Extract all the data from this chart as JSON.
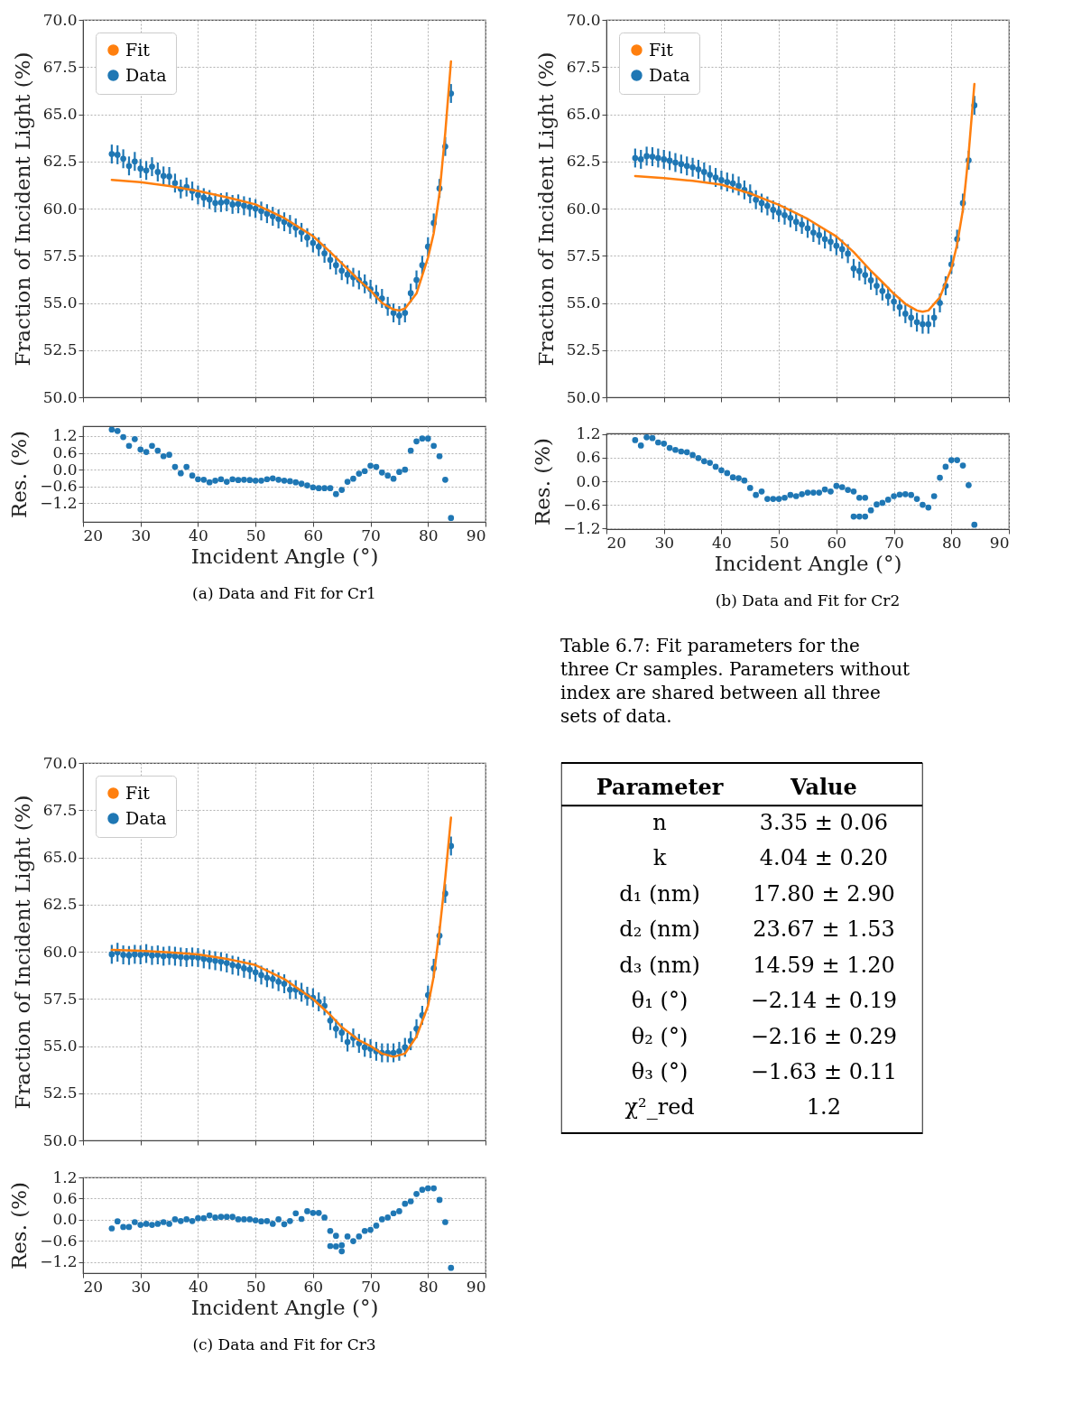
{
  "chart_data": [
    {
      "type": "scatter",
      "ylabel": "Fraction of Incident Light (%)",
      "xlim": [
        20,
        90
      ],
      "xticks": [
        20,
        30,
        40,
        50,
        60,
        70,
        80,
        90
      ],
      "ylim": [
        50,
        70
      ],
      "yticks": [
        {
          "value": 50,
          "label": "50.0"
        },
        52.5,
        {
          "value": 55,
          "label": "55.0"
        },
        57.5,
        {
          "value": 60,
          "label": "60.0"
        },
        62.5,
        {
          "value": 65,
          "label": "65.0"
        },
        67.5,
        {
          "value": 70,
          "label": "70.0"
        }
      ],
      "tick_labels": "y",
      "grid": true,
      "legend": "top left",
      "series": [
        {
          "name": "Fit",
          "type": "line",
          "color": "#ff7f0e",
          "x": [
            25,
            30,
            35,
            40,
            45,
            50,
            55,
            60,
            63,
            66,
            68,
            70,
            72,
            74,
            75,
            76,
            78,
            80,
            81,
            82,
            83,
            84
          ],
          "values": [
            61.52,
            61.4,
            61.2,
            60.93,
            60.6,
            60.22,
            59.5,
            58.54,
            57.7,
            56.8,
            56.2,
            55.66,
            55.0,
            54.65,
            54.6,
            54.7,
            55.5,
            57.4,
            58.7,
            60.8,
            64.0,
            67.8
          ]
        },
        {
          "name": "Data",
          "type": "scatter",
          "color": "#1f77b4",
          "x": [
            25,
            26,
            27,
            28,
            29,
            30,
            31,
            32,
            33,
            34,
            35,
            36,
            37,
            38,
            39,
            40,
            41,
            42,
            43,
            44,
            45,
            46,
            47,
            48,
            49,
            50,
            51,
            52,
            53,
            54,
            55,
            56,
            57,
            58,
            59,
            60,
            61,
            62,
            63,
            64,
            65,
            66,
            67,
            68,
            69,
            70,
            71,
            72,
            73,
            74,
            75,
            76,
            77,
            78,
            79,
            80,
            81,
            82,
            83,
            84
          ],
          "values": [
            62.89,
            62.85,
            62.64,
            62.26,
            62.5,
            62.12,
            62.02,
            62.22,
            61.94,
            61.73,
            61.7,
            61.35,
            61.04,
            61.14,
            60.93,
            60.72,
            60.58,
            60.48,
            60.3,
            60.32,
            60.36,
            60.22,
            60.25,
            60.15,
            60.08,
            60.0,
            59.87,
            59.73,
            59.59,
            59.45,
            59.3,
            59.16,
            58.98,
            58.74,
            58.46,
            58.18,
            57.98,
            57.63,
            57.28,
            57.0,
            56.71,
            56.5,
            56.36,
            56.22,
            56.01,
            55.73,
            55.45,
            55.24,
            54.82,
            54.47,
            54.33,
            54.47,
            55.52,
            56.22,
            57.0,
            57.98,
            59.24,
            61.07,
            63.29,
            66.1
          ],
          "errors": [
            0.5,
            0.5,
            0.5,
            0.5,
            0.5,
            0.5,
            0.5,
            0.5,
            0.5,
            0.5,
            0.5,
            0.5,
            0.5,
            0.5,
            0.5,
            0.5,
            0.5,
            0.5,
            0.5,
            0.5,
            0.5,
            0.5,
            0.5,
            0.5,
            0.5,
            0.5,
            0.5,
            0.5,
            0.5,
            0.5,
            0.5,
            0.5,
            0.5,
            0.5,
            0.5,
            0.5,
            0.5,
            0.5,
            0.5,
            0.5,
            0.5,
            0.5,
            0.5,
            0.5,
            0.5,
            0.5,
            0.5,
            0.5,
            0.5,
            0.5,
            0.5,
            0.5,
            0.5,
            0.5,
            0.5,
            0.5,
            0.5,
            0.5,
            0.5,
            0.5
          ]
        }
      ]
    },
    {
      "type": "scatter",
      "xlabel": "Incident Angle (°)",
      "ylabel": "Res. (%)",
      "xlim": [
        20,
        90
      ],
      "xticks": [
        20,
        30,
        40,
        50,
        60,
        70,
        80,
        90
      ],
      "ylim": [
        -1.86,
        1.55
      ],
      "yticks": [
        {
          "value": -1.2,
          "label": "−1.2"
        },
        {
          "value": -0.6,
          "label": "−0.6"
        },
        {
          "value": 0,
          "label": "0.0"
        },
        0.6,
        1.2
      ],
      "grid": true,
      "annotations": [
        "(a) Data and Fit for Cr1"
      ],
      "series": [
        {
          "color": "#1f77b4",
          "x": [
            25,
            26,
            27,
            28,
            29,
            30,
            31,
            32,
            33,
            34,
            35,
            36,
            37,
            38,
            39,
            40,
            41,
            42,
            43,
            44,
            45,
            46,
            47,
            48,
            49,
            50,
            51,
            52,
            53,
            54,
            55,
            56,
            57,
            58,
            59,
            60,
            61,
            62,
            63,
            64,
            65,
            66,
            67,
            68,
            69,
            70,
            71,
            72,
            73,
            74,
            75,
            76,
            77,
            78,
            79,
            80,
            81,
            82,
            83,
            84
          ],
          "values": [
            1.43,
            1.38,
            1.16,
            0.85,
            1.09,
            0.72,
            0.63,
            0.85,
            0.68,
            0.48,
            0.53,
            0.1,
            -0.13,
            0.1,
            -0.21,
            -0.34,
            -0.36,
            -0.45,
            -0.39,
            -0.34,
            -0.43,
            -0.34,
            -0.37,
            -0.36,
            -0.37,
            -0.39,
            -0.39,
            -0.34,
            -0.31,
            -0.36,
            -0.39,
            -0.41,
            -0.45,
            -0.5,
            -0.56,
            -0.63,
            -0.66,
            -0.66,
            -0.66,
            -0.87,
            -0.72,
            -0.43,
            -0.32,
            -0.14,
            -0.05,
            0.14,
            0.1,
            -0.1,
            -0.21,
            -0.32,
            -0.08,
            0.0,
            0.68,
            1.01,
            1.11,
            1.11,
            0.85,
            0.48,
            -0.36,
            -1.72
          ]
        }
      ]
    },
    {
      "type": "scatter",
      "ylabel": "Fraction of Incident Light (%)",
      "xlim": [
        20,
        90
      ],
      "xticks": [
        20,
        30,
        40,
        50,
        60,
        70,
        80,
        90
      ],
      "ylim": [
        50,
        70
      ],
      "yticks": [
        {
          "value": 50,
          "label": "50.0"
        },
        52.5,
        {
          "value": 55,
          "label": "55.0"
        },
        57.5,
        {
          "value": 60,
          "label": "60.0"
        },
        62.5,
        {
          "value": 65,
          "label": "65.0"
        },
        67.5,
        {
          "value": 70,
          "label": "70.0"
        }
      ],
      "tick_labels": "y",
      "grid": true,
      "legend": "top left",
      "series": [
        {
          "name": "Fit",
          "type": "line",
          "color": "#ff7f0e",
          "x": [
            25,
            30,
            35,
            40,
            45,
            50,
            55,
            60,
            63,
            66,
            68,
            70,
            72,
            74,
            75,
            76,
            78,
            80,
            81,
            82,
            83,
            84
          ],
          "values": [
            61.72,
            61.62,
            61.47,
            61.27,
            60.8,
            60.2,
            59.45,
            58.52,
            57.7,
            56.7,
            56.1,
            55.49,
            54.95,
            54.6,
            54.53,
            54.6,
            55.3,
            56.83,
            58.1,
            59.93,
            62.9,
            66.6
          ]
        },
        {
          "name": "Data",
          "type": "scatter",
          "color": "#1f77b4",
          "x": [
            25,
            26,
            27,
            28,
            29,
            30,
            31,
            32,
            33,
            34,
            35,
            36,
            37,
            38,
            39,
            40,
            41,
            42,
            43,
            44,
            45,
            46,
            47,
            48,
            49,
            50,
            51,
            52,
            53,
            54,
            55,
            56,
            57,
            58,
            59,
            60,
            61,
            62,
            63,
            64,
            65,
            66,
            67,
            68,
            69,
            70,
            71,
            72,
            73,
            74,
            75,
            76,
            77,
            78,
            79,
            80,
            81,
            82,
            83,
            84
          ],
          "values": [
            62.68,
            62.61,
            62.78,
            62.75,
            62.68,
            62.61,
            62.54,
            62.44,
            62.36,
            62.26,
            62.19,
            62.08,
            61.94,
            61.79,
            61.65,
            61.51,
            61.41,
            61.34,
            61.2,
            60.99,
            60.78,
            60.47,
            60.29,
            60.14,
            59.93,
            59.79,
            59.65,
            59.51,
            59.3,
            59.16,
            58.95,
            58.73,
            58.59,
            58.38,
            58.24,
            58.03,
            57.85,
            57.61,
            56.83,
            56.69,
            56.48,
            56.2,
            55.91,
            55.63,
            55.35,
            55.07,
            54.78,
            54.43,
            54.22,
            53.98,
            53.87,
            53.87,
            54.22,
            55.0,
            55.91,
            57.04,
            58.38,
            60.29,
            62.56,
            65.47
          ],
          "errors": [
            0.5,
            0.5,
            0.5,
            0.5,
            0.5,
            0.5,
            0.5,
            0.5,
            0.5,
            0.5,
            0.5,
            0.5,
            0.5,
            0.5,
            0.5,
            0.5,
            0.5,
            0.5,
            0.5,
            0.5,
            0.5,
            0.5,
            0.5,
            0.5,
            0.5,
            0.5,
            0.5,
            0.5,
            0.5,
            0.5,
            0.5,
            0.5,
            0.5,
            0.5,
            0.5,
            0.5,
            0.5,
            0.5,
            0.5,
            0.5,
            0.5,
            0.5,
            0.5,
            0.5,
            0.5,
            0.5,
            0.5,
            0.5,
            0.5,
            0.5,
            0.5,
            0.5,
            0.5,
            0.5,
            0.5,
            0.5,
            0.5,
            0.5,
            0.5,
            0.5
          ]
        }
      ]
    },
    {
      "type": "scatter",
      "xlabel": "Incident Angle (°)",
      "ylabel": "Res. (%)",
      "xlim": [
        20,
        90
      ],
      "xticks": [
        20,
        30,
        40,
        50,
        60,
        70,
        80,
        90
      ],
      "ylim": [
        -1.22,
        1.22
      ],
      "yticks": [
        {
          "value": -1.2,
          "label": "−1.2"
        },
        {
          "value": -0.6,
          "label": "−0.6"
        },
        {
          "value": 0,
          "label": "0.0"
        },
        0.6,
        1.2
      ],
      "grid": true,
      "annotations": [
        "(b) Data and Fit for Cr2"
      ],
      "series": [
        {
          "color": "#1f77b4",
          "x": [
            25,
            26,
            27,
            28,
            29,
            30,
            31,
            32,
            33,
            34,
            35,
            36,
            37,
            38,
            39,
            40,
            41,
            42,
            43,
            44,
            45,
            46,
            47,
            48,
            49,
            50,
            51,
            52,
            53,
            54,
            55,
            56,
            57,
            58,
            59,
            60,
            61,
            62,
            63,
            63,
            64,
            64,
            65,
            65,
            66,
            67,
            68,
            69,
            70,
            71,
            72,
            73,
            74,
            75,
            76,
            77,
            78,
            79,
            80,
            81,
            82,
            83,
            84
          ],
          "values": [
            1.05,
            0.91,
            1.12,
            1.1,
            0.99,
            0.96,
            0.85,
            0.8,
            0.76,
            0.74,
            0.67,
            0.59,
            0.51,
            0.47,
            0.37,
            0.28,
            0.21,
            0.1,
            0.08,
            0.02,
            -0.17,
            -0.35,
            -0.26,
            -0.45,
            -0.45,
            -0.45,
            -0.42,
            -0.35,
            -0.38,
            -0.33,
            -0.29,
            -0.29,
            -0.29,
            -0.21,
            -0.26,
            -0.12,
            -0.15,
            -0.22,
            -0.26,
            -0.9,
            -0.42,
            -0.9,
            -0.42,
            -0.9,
            -0.74,
            -0.59,
            -0.55,
            -0.47,
            -0.38,
            -0.34,
            -0.33,
            -0.35,
            -0.45,
            -0.6,
            -0.67,
            -0.38,
            0.09,
            0.37,
            0.54,
            0.54,
            0.4,
            -0.1,
            -1.11
          ]
        }
      ]
    },
    {
      "type": "scatter",
      "ylabel": "Fraction of Incident Light (%)",
      "xlim": [
        20,
        90
      ],
      "xticks": [
        20,
        30,
        40,
        50,
        60,
        70,
        80,
        90
      ],
      "ylim": [
        50,
        70
      ],
      "yticks": [
        {
          "value": 50,
          "label": "50.0"
        },
        52.5,
        {
          "value": 55,
          "label": "55.0"
        },
        57.5,
        {
          "value": 60,
          "label": "60.0"
        },
        62.5,
        {
          "value": 65,
          "label": "65.0"
        },
        67.5,
        {
          "value": 70,
          "label": "70.0"
        }
      ],
      "tick_labels": "y",
      "grid": true,
      "legend": "top left",
      "series": [
        {
          "name": "Fit",
          "type": "line",
          "color": "#ff7f0e",
          "x": [
            25,
            30,
            35,
            40,
            45,
            50,
            55,
            60,
            63,
            65,
            68,
            70,
            72,
            74,
            76,
            78,
            80,
            81,
            82,
            83,
            84
          ],
          "values": [
            60.09,
            60.05,
            59.97,
            59.86,
            59.62,
            59.29,
            58.55,
            57.49,
            56.65,
            56.0,
            55.3,
            55.0,
            54.6,
            54.43,
            54.6,
            55.5,
            57.13,
            58.7,
            61.1,
            63.9,
            67.1
          ]
        },
        {
          "name": "Data",
          "type": "scatter",
          "color": "#1f77b4",
          "x": [
            25,
            26,
            27,
            28,
            29,
            30,
            31,
            32,
            33,
            34,
            35,
            36,
            37,
            38,
            39,
            40,
            41,
            42,
            43,
            44,
            45,
            46,
            47,
            48,
            49,
            50,
            51,
            52,
            53,
            54,
            55,
            56,
            57,
            58,
            59,
            60,
            61,
            62,
            63,
            64,
            65,
            66,
            67,
            68,
            69,
            70,
            71,
            72,
            73,
            74,
            75,
            76,
            77,
            78,
            79,
            80,
            81,
            82,
            83,
            84
          ],
          "values": [
            59.86,
            59.97,
            59.83,
            59.8,
            59.86,
            59.83,
            59.9,
            59.8,
            59.83,
            59.76,
            59.8,
            59.76,
            59.72,
            59.69,
            59.72,
            59.69,
            59.62,
            59.57,
            59.52,
            59.47,
            59.4,
            59.29,
            59.23,
            59.12,
            59.05,
            58.91,
            58.76,
            58.62,
            58.55,
            58.41,
            58.3,
            57.99,
            57.99,
            57.85,
            57.64,
            57.56,
            57.34,
            57.13,
            56.35,
            55.92,
            55.71,
            55.21,
            55.43,
            55.14,
            54.93,
            54.86,
            54.72,
            54.64,
            54.64,
            54.64,
            54.72,
            54.93,
            55.28,
            55.92,
            56.63,
            57.7,
            59.12,
            60.85,
            63.08,
            65.6
          ],
          "errors": [
            0.5,
            0.5,
            0.5,
            0.5,
            0.5,
            0.5,
            0.5,
            0.5,
            0.5,
            0.5,
            0.5,
            0.5,
            0.5,
            0.5,
            0.5,
            0.5,
            0.5,
            0.5,
            0.5,
            0.5,
            0.5,
            0.5,
            0.5,
            0.5,
            0.5,
            0.5,
            0.5,
            0.5,
            0.5,
            0.5,
            0.5,
            0.5,
            0.5,
            0.5,
            0.5,
            0.5,
            0.5,
            0.5,
            0.5,
            0.5,
            0.5,
            0.5,
            0.5,
            0.5,
            0.5,
            0.5,
            0.5,
            0.5,
            0.5,
            0.5,
            0.5,
            0.5,
            0.5,
            0.5,
            0.5,
            0.5,
            0.5,
            0.5,
            0.5,
            0.5
          ]
        }
      ]
    },
    {
      "type": "scatter",
      "xlabel": "Incident Angle (°)",
      "ylabel": "Res. (%)",
      "xlim": [
        20,
        90
      ],
      "xticks": [
        20,
        30,
        40,
        50,
        60,
        70,
        80,
        90
      ],
      "ylim": [
        -1.52,
        1.2
      ],
      "yticks": [
        {
          "value": -1.2,
          "label": "−1.2"
        },
        {
          "value": -0.6,
          "label": "−0.6"
        },
        {
          "value": 0,
          "label": "0.0"
        },
        0.6,
        1.2
      ],
      "grid": true,
      "annotations": [
        "(c) Data and Fit for Cr3"
      ],
      "series": [
        {
          "color": "#1f77b4",
          "x": [
            25,
            26,
            27,
            28,
            29,
            30,
            31,
            32,
            33,
            34,
            35,
            36,
            37,
            38,
            39,
            40,
            41,
            42,
            43,
            44,
            45,
            46,
            47,
            48,
            49,
            50,
            51,
            52,
            53,
            54,
            55,
            56,
            57,
            58,
            59,
            60,
            61,
            62,
            63,
            63,
            64,
            64,
            65,
            65,
            66,
            67,
            68,
            69,
            70,
            71,
            72,
            73,
            74,
            75,
            76,
            77,
            78,
            79,
            80,
            81,
            82,
            83,
            84
          ],
          "values": [
            -0.25,
            -0.05,
            -0.21,
            -0.21,
            -0.07,
            -0.15,
            -0.12,
            -0.15,
            -0.12,
            -0.07,
            -0.12,
            0.01,
            -0.04,
            0.01,
            -0.04,
            0.04,
            0.04,
            0.12,
            0.06,
            0.08,
            0.08,
            0.08,
            0.01,
            0.01,
            0.01,
            -0.02,
            -0.05,
            -0.04,
            -0.12,
            0.01,
            -0.13,
            -0.04,
            0.18,
            0.02,
            0.24,
            0.19,
            0.19,
            0.06,
            -0.32,
            -0.75,
            -0.46,
            -0.76,
            -0.9,
            -0.73,
            -0.48,
            -0.61,
            -0.48,
            -0.32,
            -0.29,
            -0.17,
            0.01,
            0.06,
            0.18,
            0.24,
            0.45,
            0.52,
            0.73,
            0.85,
            0.89,
            0.89,
            0.56,
            -0.07,
            -1.37
          ]
        }
      ]
    },
    {
      "type": "other",
      "title": "Table 6.7: Fit parameters for the three Cr samples. Parameters without index are shared between all three sets of data.",
      "annotations": [
        "Parameter",
        "Value",
        "n",
        "3.35 ± 0.06",
        "k",
        "4.04 ± 0.20",
        "d₁ (nm)",
        "17.80 ± 2.90",
        "d₂ (nm)",
        "23.67 ± 1.53",
        "d₃ (nm)",
        "14.59 ± 1.20",
        "θ₁ (°)",
        "−2.14 ± 0.19",
        "θ₂ (°)",
        "−2.16 ± 0.29",
        "θ₃ (°)",
        "−1.63 ± 0.11",
        "χ²_red",
        "1.2"
      ]
    }
  ]
}
